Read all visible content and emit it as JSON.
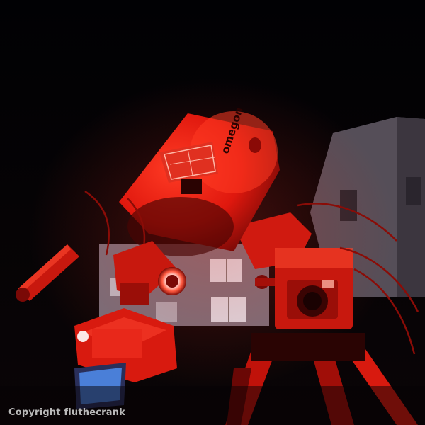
{
  "photo": {
    "subject": "telescope under red light",
    "brand_label": "omegon",
    "copyright": "Copyright fluthecrank"
  },
  "palette": {
    "sky": "#020104",
    "red_bright": "#ff2a1a",
    "red_mid": "#c4140c",
    "red_dark": "#5a0604",
    "building": "#5c5560",
    "building_light": "#8a8390",
    "window": "#e8ecf4",
    "screen": "#4a7fd8"
  },
  "icons": [
    "telescope-tube",
    "camera-body",
    "mount-motor",
    "tripod",
    "finder-scope",
    "camera-screen"
  ]
}
